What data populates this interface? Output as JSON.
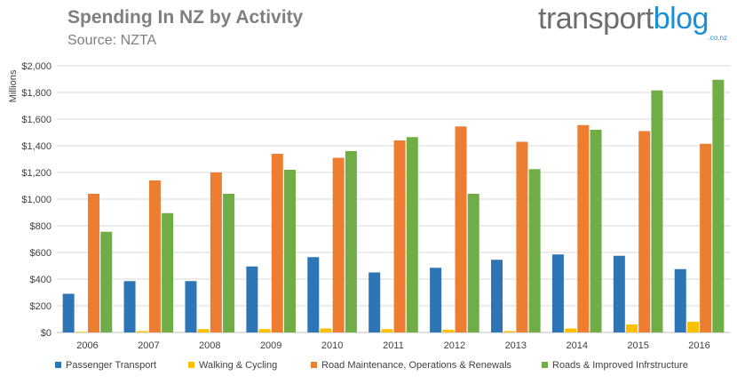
{
  "header": {
    "title": "Spending In NZ by Activity",
    "subtitle": "Source: NZTA"
  },
  "logo": {
    "word_a": "transport",
    "word_b": "blog",
    "suffix": ".co.nz"
  },
  "chart_data": {
    "type": "bar",
    "categories": [
      "2006",
      "2007",
      "2008",
      "2009",
      "2010",
      "2011",
      "2012",
      "2013",
      "2014",
      "2015",
      "2016"
    ],
    "ylabel": "Millions",
    "xlabel": "",
    "ylim": [
      0,
      2000
    ],
    "y_ticks": [
      "$0",
      "$200",
      "$400",
      "$600",
      "$800",
      "$1,000",
      "$1,200",
      "$1,400",
      "$1,600",
      "$1,800",
      "$2,000"
    ],
    "grid": true,
    "legend_position": "bottom",
    "series": [
      {
        "name": "Passenger Transport",
        "color": "#2e75b6",
        "values": [
          290,
          385,
          385,
          495,
          565,
          450,
          485,
          545,
          585,
          575,
          475
        ]
      },
      {
        "name": "Walking & Cycling",
        "color": "#ffc000",
        "values": [
          5,
          10,
          25,
          25,
          30,
          25,
          20,
          10,
          30,
          60,
          80
        ]
      },
      {
        "name": "Road Maintenance, Operations & Renewals",
        "color": "#ed7d31",
        "values": [
          1040,
          1140,
          1200,
          1340,
          1310,
          1440,
          1545,
          1430,
          1555,
          1510,
          1415
        ]
      },
      {
        "name": "Roads & Improved Infrstructure",
        "color": "#70ad47",
        "values": [
          755,
          895,
          1040,
          1220,
          1360,
          1465,
          1040,
          1225,
          1520,
          1815,
          1895
        ]
      }
    ]
  }
}
